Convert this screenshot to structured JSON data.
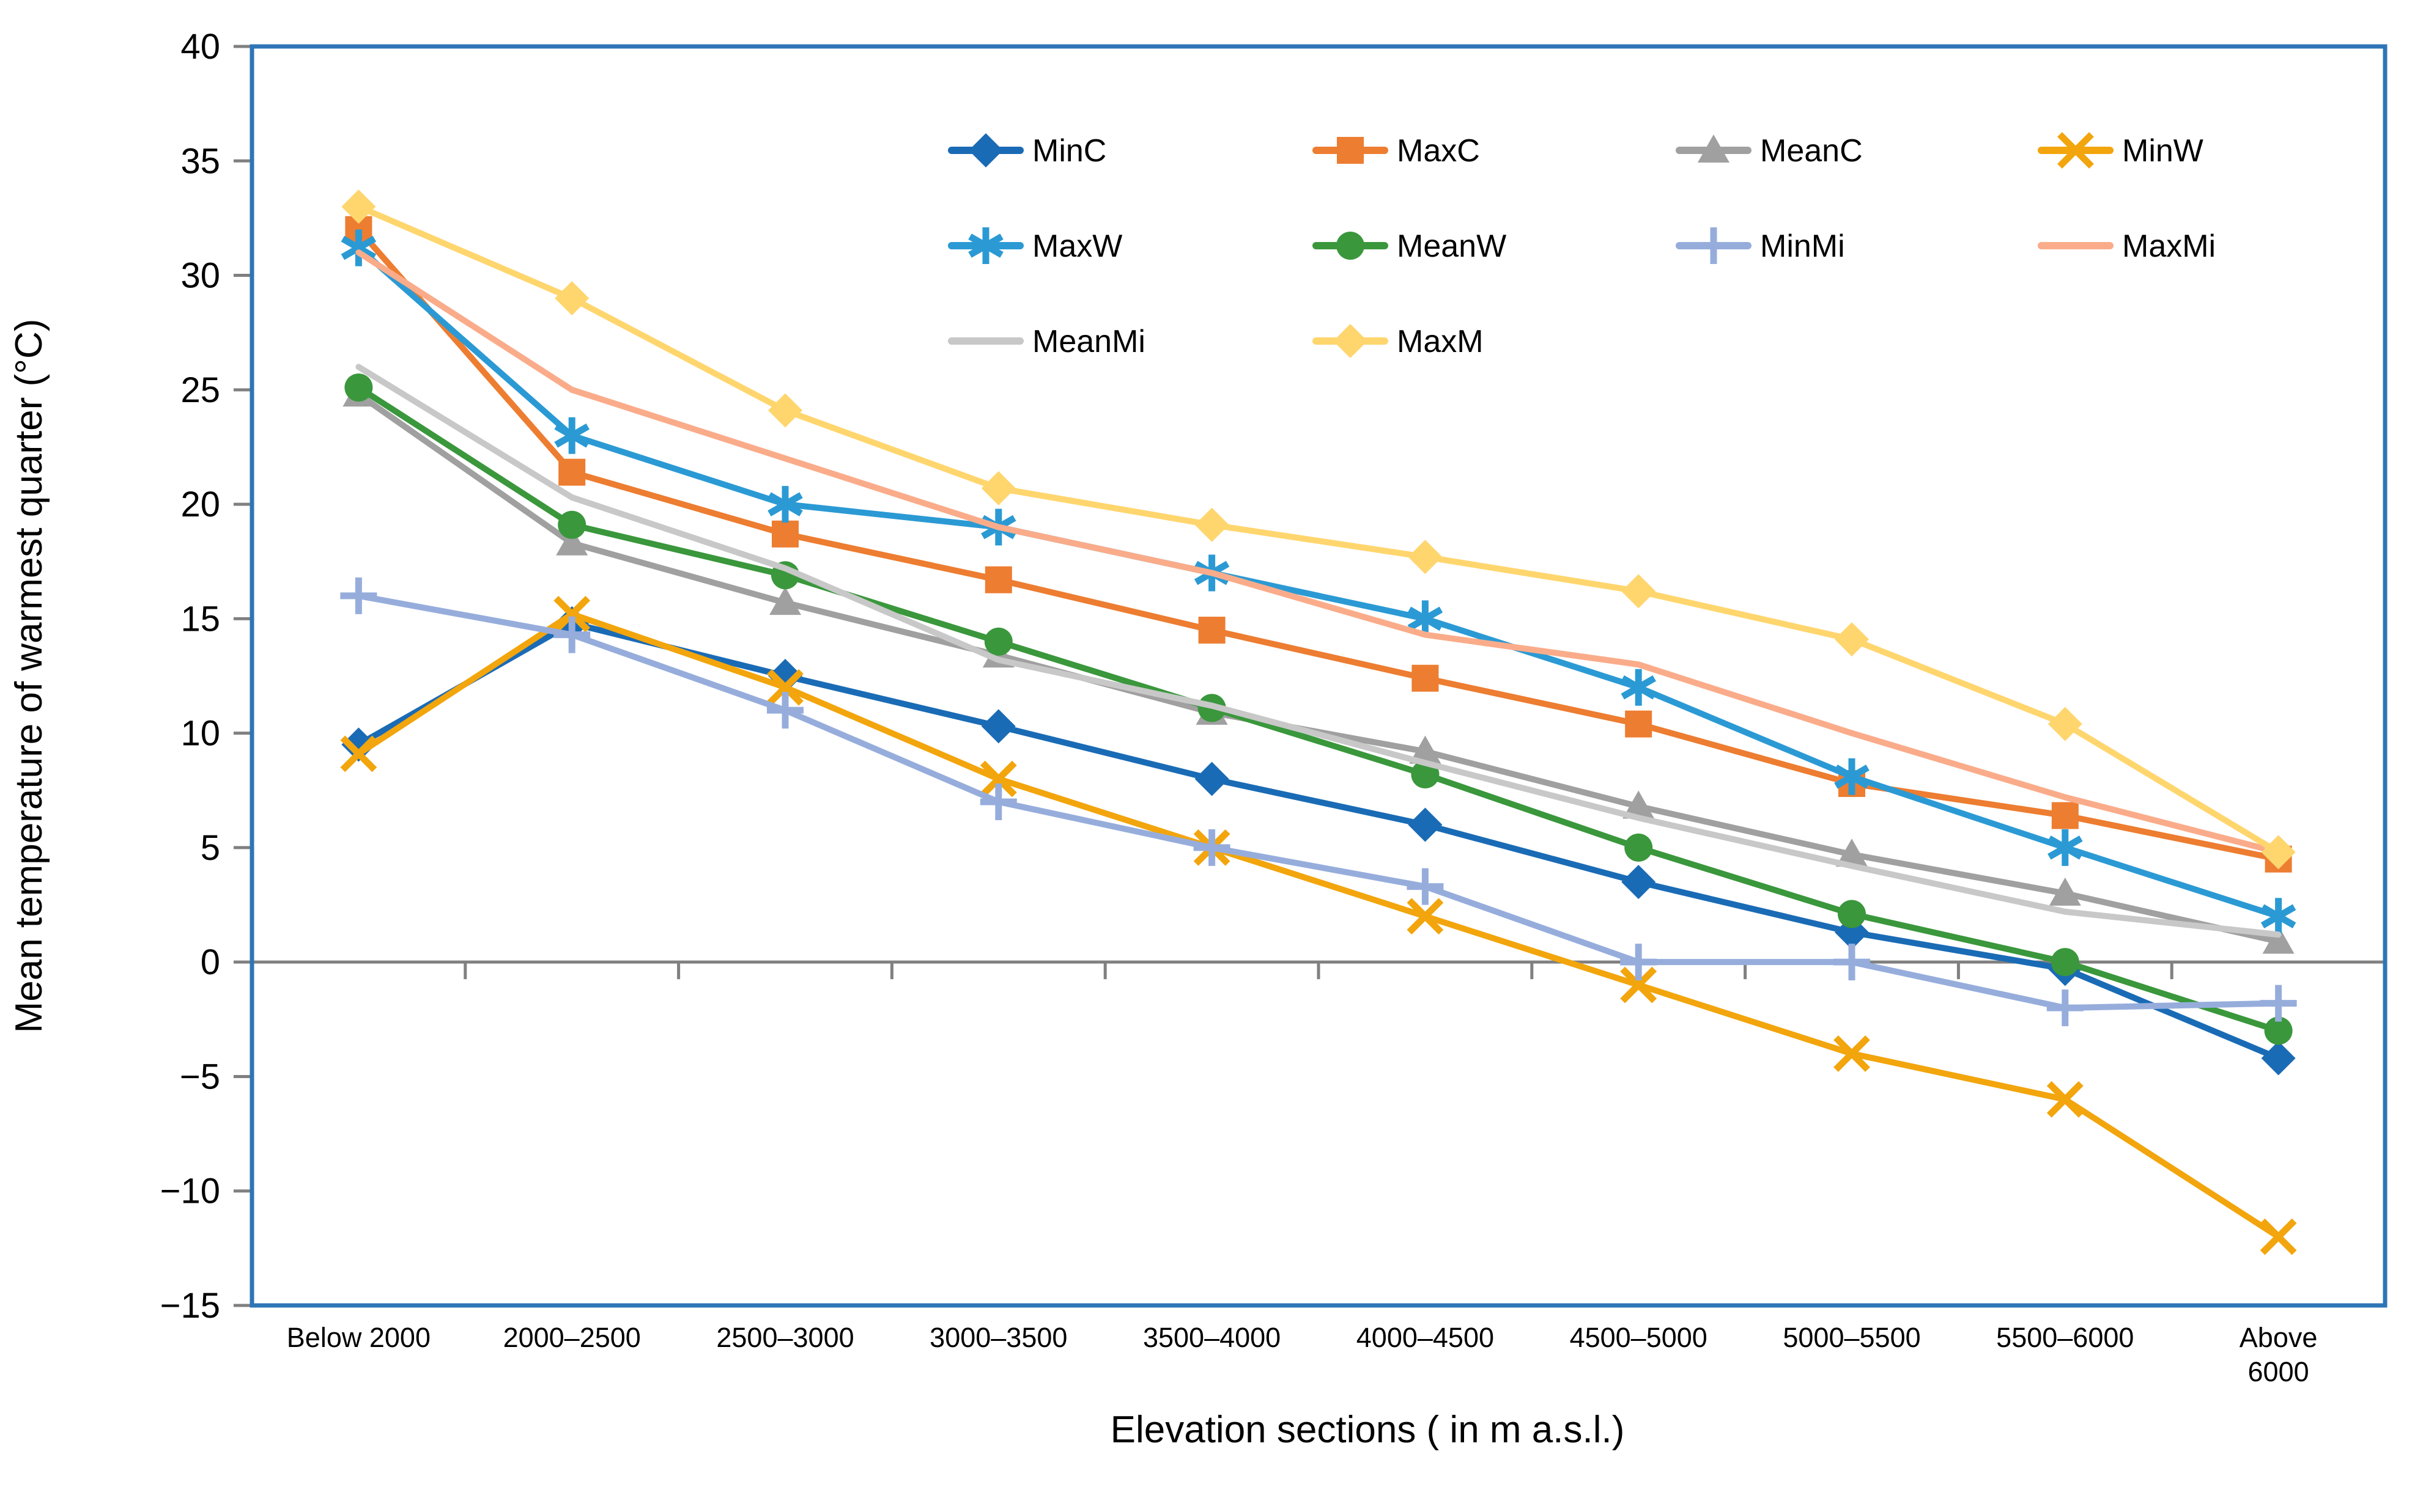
{
  "colors": {
    "frame": "#2E75B6",
    "axis": "#808080",
    "text": "#000000",
    "background": "#FFFFFF"
  },
  "chart_data": {
    "type": "line",
    "title": "",
    "xlabel": "Elevation sections ( in m a.s.l.)",
    "ylabel": "Mean temperature of warmest quarter (°C)",
    "ylim": [
      -15,
      40
    ],
    "ytick_step": 5,
    "grid": "off",
    "legend_position": "top-center",
    "y_tick_labels": [
      "40",
      "35",
      "30",
      "25",
      "20",
      "15",
      "10",
      "5",
      "0",
      "−5",
      "−10",
      "−15"
    ],
    "y_tick_values": [
      40,
      35,
      30,
      25,
      20,
      15,
      10,
      5,
      0,
      -5,
      -10,
      -15
    ],
    "categories": [
      "Below 2000",
      "2000–2500",
      "2500–3000",
      "3000–3500",
      "3500–4000",
      "4000–4500",
      "4500–5000",
      "5000–5500",
      "5500–6000",
      "Above 6000"
    ],
    "x_tick_labels": [
      [
        "Below 2000"
      ],
      [
        "2000–2500"
      ],
      [
        "2500–3000"
      ],
      [
        "3000–3500"
      ],
      [
        "3500–4000"
      ],
      [
        "4000–4500"
      ],
      [
        "4500–5000"
      ],
      [
        "5000–5500"
      ],
      [
        "5500–6000"
      ],
      [
        "Above",
        "6000"
      ]
    ],
    "series": [
      {
        "name": "MinC",
        "color": "#1A6BB5",
        "marker": "diamond",
        "values": [
          9.5,
          14.8,
          12.5,
          10.3,
          8.0,
          6.0,
          3.5,
          1.3,
          -0.3,
          -4.2
        ]
      },
      {
        "name": "MaxC",
        "color": "#ED7D31",
        "marker": "square",
        "values": [
          32.0,
          21.4,
          18.7,
          16.7,
          14.5,
          12.4,
          10.4,
          7.8,
          6.4,
          4.5
        ]
      },
      {
        "name": "MeanC",
        "color": "#A0A0A0",
        "marker": "triangle",
        "values": [
          24.8,
          18.3,
          15.7,
          13.4,
          10.9,
          9.2,
          6.8,
          4.7,
          3.0,
          0.9
        ]
      },
      {
        "name": "MinW",
        "color": "#F2A50C",
        "marker": "x",
        "values": [
          9.1,
          15.2,
          12.0,
          8.0,
          5.0,
          2.0,
          -1.0,
          -4.0,
          -6.0,
          -12.0
        ]
      },
      {
        "name": "MaxW",
        "color": "#2B9AD4",
        "marker": "asterisk",
        "values": [
          31.2,
          23.0,
          20.0,
          19.0,
          17.0,
          15.0,
          12.0,
          8.1,
          5.0,
          2.0
        ]
      },
      {
        "name": "MeanW",
        "color": "#3A973C",
        "marker": "circle",
        "values": [
          25.1,
          19.1,
          16.9,
          14.0,
          11.1,
          8.2,
          5.0,
          2.1,
          0.0,
          -3.0
        ]
      },
      {
        "name": "MinMi",
        "color": "#96ADDC",
        "marker": "plus",
        "values": [
          16.0,
          14.3,
          11.0,
          7.0,
          5.0,
          3.3,
          0.0,
          0.0,
          -2.0,
          -1.8
        ]
      },
      {
        "name": "MaxMi",
        "color": "#FAAC8A",
        "marker": "none",
        "values": [
          31.0,
          25.0,
          22.0,
          19.0,
          17.0,
          14.3,
          13.0,
          10.0,
          7.2,
          4.8
        ]
      },
      {
        "name": "MeanMi",
        "color": "#C8C8C8",
        "marker": "none",
        "values": [
          26.0,
          20.3,
          17.2,
          13.2,
          11.2,
          8.7,
          6.3,
          4.2,
          2.2,
          1.2
        ]
      },
      {
        "name": "MaxM",
        "color": "#FFD66E",
        "marker": "diamond",
        "values": [
          33.0,
          29.0,
          24.1,
          20.7,
          19.1,
          17.7,
          16.2,
          14.1,
          10.4,
          4.8
        ]
      }
    ],
    "legend_rows": [
      [
        "MinC",
        "MaxC",
        "MeanC",
        "MinW"
      ],
      [
        "MaxW",
        "MeanW",
        "MinMi",
        "MaxMi"
      ],
      [
        "MeanMi",
        "MaxM"
      ]
    ]
  }
}
